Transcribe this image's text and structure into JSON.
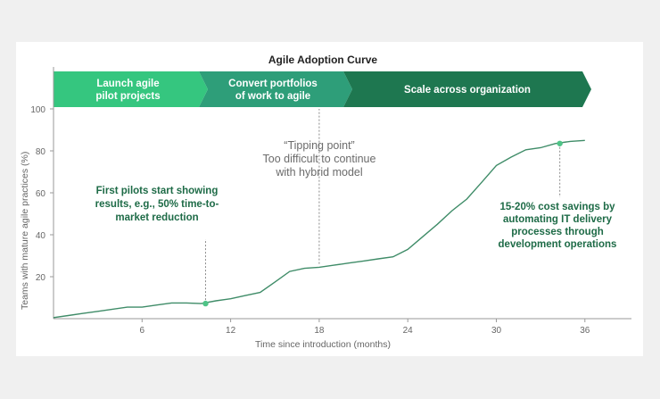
{
  "chart_data": {
    "type": "line",
    "title": "Agile Adoption Curve",
    "xlabel": "Time since introduction (months)",
    "ylabel": "Teams with mature agile practices (%)",
    "xlim": [
      0,
      39
    ],
    "ylim": [
      0,
      100
    ],
    "xticks": [
      6,
      12,
      18,
      24,
      30,
      36
    ],
    "yticks": [
      20,
      40,
      60,
      80,
      100
    ],
    "grid": false,
    "series": [
      {
        "color": "#3f8c68",
        "x": [
          0,
          1,
          2,
          3,
          4,
          5,
          6,
          7,
          8,
          9,
          10,
          11,
          12,
          13,
          14,
          15,
          16,
          17,
          18,
          19,
          20,
          21,
          22,
          23,
          24,
          25,
          26,
          27,
          28,
          29,
          30,
          31,
          32,
          33,
          34,
          35,
          36
        ],
        "y": [
          0.5,
          1.5,
          2.5,
          3.5,
          4.5,
          5.5,
          5.5,
          6.5,
          7.5,
          7.5,
          7.2,
          8.5,
          9.5,
          11.0,
          12.5,
          17.5,
          22.5,
          24.0,
          24.5,
          25.5,
          26.5,
          27.5,
          28.5,
          29.5,
          33.0,
          39.0,
          45.0,
          51.5,
          57.0,
          65.0,
          73.0,
          77.0,
          80.5,
          81.5,
          83.5,
          84.5,
          85.0
        ]
      }
    ],
    "markers": [
      {
        "x": 10.3,
        "y": 7.2,
        "color": "#4fc487"
      },
      {
        "x": 34.3,
        "y": 83.5,
        "color": "#4fc487"
      }
    ],
    "phases": [
      {
        "lines": [
          "Launch agile",
          "pilot projects"
        ],
        "color": "#35c67f"
      },
      {
        "lines": [
          "Convert portfolios",
          "of work to agile"
        ],
        "color": "#2e9e79"
      },
      {
        "lines": [
          "Scale across organization"
        ],
        "color": "#1e7750"
      }
    ],
    "annotations": [
      {
        "lines": [
          "First pilots start showing",
          "results, e.g., 50% time-to-",
          "market reduction"
        ],
        "style": "green",
        "x": 10.3
      },
      {
        "lines": [
          "“Tipping point”",
          "Too difficult to continue",
          "with hybrid model"
        ],
        "style": "gray",
        "x": 18
      },
      {
        "lines": [
          "15-20% cost savings by",
          "automating IT delivery",
          "processes through",
          "development operations"
        ],
        "style": "green",
        "x": 34.3
      }
    ]
  }
}
